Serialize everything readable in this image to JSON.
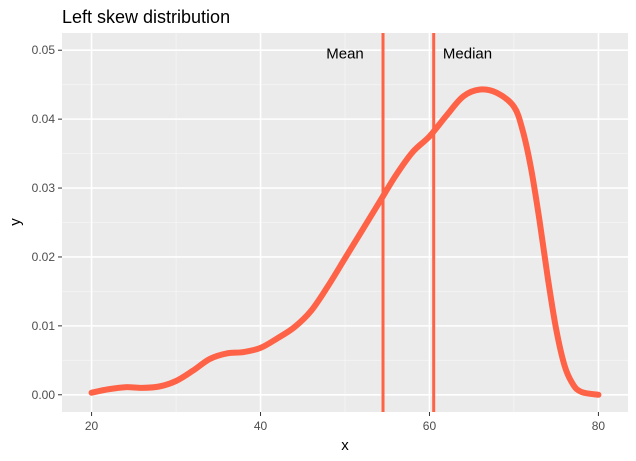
{
  "chart_data": {
    "type": "line",
    "title": "Left skew distribution",
    "xlabel": "x",
    "ylabel": "y",
    "xlim": [
      16.5,
      83.5
    ],
    "ylim": [
      -0.0025,
      0.0525
    ],
    "x_ticks": [
      20,
      40,
      60,
      80
    ],
    "x_tick_labels": [
      "20",
      "40",
      "60",
      "80"
    ],
    "y_ticks": [
      0.0,
      0.01,
      0.02,
      0.03,
      0.04,
      0.05
    ],
    "y_tick_labels": [
      "0.00",
      "0.01",
      "0.02",
      "0.03",
      "0.04",
      "0.05"
    ],
    "grid": true,
    "background": "#ebebeb",
    "series": [
      {
        "color": "#ff6347",
        "x": [
          20,
          22,
          24,
          26,
          28,
          30,
          32,
          34,
          36,
          38,
          40,
          42,
          44,
          46,
          48,
          50,
          52,
          54,
          56,
          58,
          60,
          62,
          64,
          66,
          68,
          70,
          71,
          72,
          73,
          74,
          75,
          76,
          77,
          78,
          80
        ],
        "y": [
          0.0003,
          0.0008,
          0.0011,
          0.001,
          0.0012,
          0.002,
          0.0035,
          0.0052,
          0.006,
          0.0062,
          0.0068,
          0.0082,
          0.0098,
          0.0122,
          0.0158,
          0.0198,
          0.0238,
          0.0278,
          0.0318,
          0.0352,
          0.0375,
          0.0405,
          0.0433,
          0.0443,
          0.0438,
          0.0418,
          0.0385,
          0.033,
          0.0255,
          0.017,
          0.0095,
          0.0042,
          0.0015,
          0.0004,
          0.0
        ]
      }
    ],
    "vlines": [
      {
        "label": "Mean",
        "x": 54.5,
        "color": "#ff6347"
      },
      {
        "label": "Median",
        "x": 60.5,
        "color": "#ff6347"
      }
    ],
    "annotations": [
      {
        "text": "Mean",
        "x": 50,
        "y": 0.0495
      },
      {
        "text": "Median",
        "x": 64.5,
        "y": 0.0495
      }
    ]
  }
}
